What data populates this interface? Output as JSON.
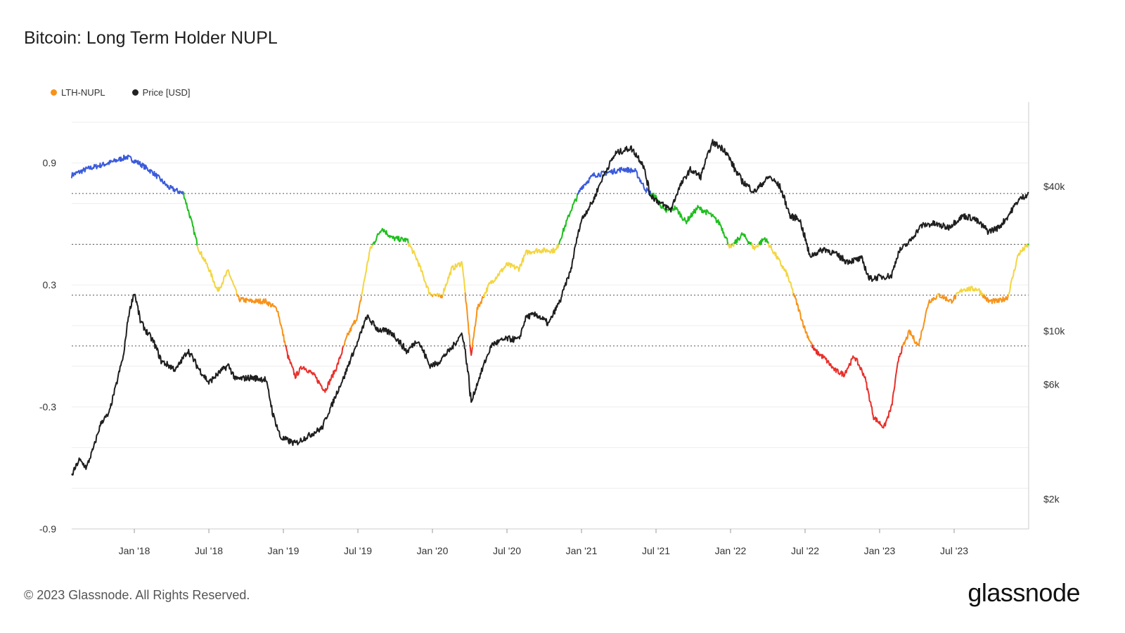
{
  "title": "Bitcoin: Long Term Holder NUPL",
  "legend": [
    {
      "label": "LTH-NUPL",
      "color": "#f7931a"
    },
    {
      "label": "Price [USD]",
      "color": "#222222"
    }
  ],
  "footer": "© 2023 Glassnode. All Rights Reserved.",
  "brand": "glassnode",
  "chart_data": {
    "type": "line",
    "title": "Bitcoin: Long Term Holder NUPL",
    "x_range": [
      2017.5,
      2023.92
    ],
    "x_ticks": [
      {
        "t": 2017.92,
        "label": "Jan '18"
      },
      {
        "t": 2018.42,
        "label": "Jul '18"
      },
      {
        "t": 2018.92,
        "label": "Jan '19"
      },
      {
        "t": 2019.42,
        "label": "Jul '19"
      },
      {
        "t": 2019.92,
        "label": "Jan '20"
      },
      {
        "t": 2020.42,
        "label": "Jul '20"
      },
      {
        "t": 2020.92,
        "label": "Jan '21"
      },
      {
        "t": 2021.42,
        "label": "Jul '21"
      },
      {
        "t": 2021.92,
        "label": "Jan '22"
      },
      {
        "t": 2022.42,
        "label": "Jul '22"
      },
      {
        "t": 2022.92,
        "label": "Jan '23"
      },
      {
        "t": 2023.42,
        "label": "Jul '23"
      }
    ],
    "y_left": {
      "label": "LTH-NUPL",
      "range": [
        -0.9,
        1.2
      ],
      "ticks": [
        0.9,
        0.3,
        -0.3,
        -0.9
      ]
    },
    "y_right": {
      "label": "Price [USD]",
      "scale": "log",
      "ticks": [
        {
          "v": 40000,
          "label": "$40k"
        },
        {
          "v": 10000,
          "label": "$10k"
        },
        {
          "v": 6000,
          "label": "$6k"
        },
        {
          "v": 2000,
          "label": "$2k"
        }
      ]
    },
    "threshold_lines": [
      0.75,
      0.5,
      0.25,
      0.0
    ],
    "zone_colors": {
      "capitulation": "#e8302a",
      "hope_fear": "#f7931a",
      "optimism_anxiety": "#f3d641",
      "belief_denial": "#1fbf1f",
      "euphoria_greed": "#3b5bdb"
    },
    "series": [
      {
        "name": "LTH-NUPL",
        "points": [
          [
            2017.5,
            0.84
          ],
          [
            2017.6,
            0.87
          ],
          [
            2017.75,
            0.9
          ],
          [
            2017.87,
            0.93
          ],
          [
            2017.95,
            0.9
          ],
          [
            2018.05,
            0.85
          ],
          [
            2018.15,
            0.78
          ],
          [
            2018.25,
            0.75
          ],
          [
            2018.3,
            0.62
          ],
          [
            2018.35,
            0.48
          ],
          [
            2018.42,
            0.38
          ],
          [
            2018.48,
            0.27
          ],
          [
            2018.55,
            0.37
          ],
          [
            2018.62,
            0.23
          ],
          [
            2018.7,
            0.22
          ],
          [
            2018.8,
            0.22
          ],
          [
            2018.88,
            0.18
          ],
          [
            2018.95,
            -0.05
          ],
          [
            2019.0,
            -0.15
          ],
          [
            2019.05,
            -0.1
          ],
          [
            2019.12,
            -0.14
          ],
          [
            2019.2,
            -0.22
          ],
          [
            2019.28,
            -0.1
          ],
          [
            2019.35,
            0.05
          ],
          [
            2019.42,
            0.15
          ],
          [
            2019.5,
            0.47
          ],
          [
            2019.58,
            0.58
          ],
          [
            2019.65,
            0.53
          ],
          [
            2019.75,
            0.52
          ],
          [
            2019.82,
            0.42
          ],
          [
            2019.9,
            0.26
          ],
          [
            2019.98,
            0.24
          ],
          [
            2020.05,
            0.38
          ],
          [
            2020.12,
            0.41
          ],
          [
            2020.18,
            -0.05
          ],
          [
            2020.22,
            0.18
          ],
          [
            2020.3,
            0.3
          ],
          [
            2020.42,
            0.4
          ],
          [
            2020.5,
            0.38
          ],
          [
            2020.55,
            0.46
          ],
          [
            2020.62,
            0.47
          ],
          [
            2020.75,
            0.47
          ],
          [
            2020.85,
            0.67
          ],
          [
            2020.92,
            0.78
          ],
          [
            2021.0,
            0.84
          ],
          [
            2021.08,
            0.85
          ],
          [
            2021.2,
            0.87
          ],
          [
            2021.28,
            0.86
          ],
          [
            2021.35,
            0.77
          ],
          [
            2021.42,
            0.73
          ],
          [
            2021.48,
            0.66
          ],
          [
            2021.55,
            0.68
          ],
          [
            2021.62,
            0.61
          ],
          [
            2021.7,
            0.68
          ],
          [
            2021.78,
            0.65
          ],
          [
            2021.85,
            0.6
          ],
          [
            2021.92,
            0.48
          ],
          [
            2022.0,
            0.55
          ],
          [
            2022.08,
            0.48
          ],
          [
            2022.15,
            0.53
          ],
          [
            2022.22,
            0.45
          ],
          [
            2022.3,
            0.35
          ],
          [
            2022.36,
            0.22
          ],
          [
            2022.42,
            0.08
          ],
          [
            2022.48,
            -0.02
          ],
          [
            2022.55,
            -0.06
          ],
          [
            2022.62,
            -0.12
          ],
          [
            2022.68,
            -0.14
          ],
          [
            2022.75,
            -0.05
          ],
          [
            2022.82,
            -0.15
          ],
          [
            2022.88,
            -0.35
          ],
          [
            2022.95,
            -0.4
          ],
          [
            2023.0,
            -0.3
          ],
          [
            2023.05,
            -0.05
          ],
          [
            2023.12,
            0.07
          ],
          [
            2023.18,
            0.0
          ],
          [
            2023.25,
            0.22
          ],
          [
            2023.32,
            0.25
          ],
          [
            2023.4,
            0.22
          ],
          [
            2023.48,
            0.28
          ],
          [
            2023.58,
            0.28
          ],
          [
            2023.65,
            0.22
          ],
          [
            2023.72,
            0.22
          ],
          [
            2023.78,
            0.24
          ],
          [
            2023.85,
            0.45
          ],
          [
            2023.92,
            0.5
          ]
        ]
      },
      {
        "name": "Price [USD]",
        "points": [
          [
            2017.5,
            2500
          ],
          [
            2017.55,
            2900
          ],
          [
            2017.6,
            2700
          ],
          [
            2017.65,
            3300
          ],
          [
            2017.7,
            4200
          ],
          [
            2017.75,
            4500
          ],
          [
            2017.8,
            6000
          ],
          [
            2017.85,
            8000
          ],
          [
            2017.88,
            11500
          ],
          [
            2017.92,
            14500
          ],
          [
            2017.96,
            11000
          ],
          [
            2018.0,
            10000
          ],
          [
            2018.05,
            9000
          ],
          [
            2018.1,
            7500
          ],
          [
            2018.2,
            6900
          ],
          [
            2018.28,
            8300
          ],
          [
            2018.35,
            7000
          ],
          [
            2018.42,
            6100
          ],
          [
            2018.5,
            6800
          ],
          [
            2018.55,
            7200
          ],
          [
            2018.6,
            6300
          ],
          [
            2018.7,
            6400
          ],
          [
            2018.8,
            6300
          ],
          [
            2018.85,
            4500
          ],
          [
            2018.9,
            3600
          ],
          [
            2018.95,
            3500
          ],
          [
            2019.0,
            3400
          ],
          [
            2019.1,
            3700
          ],
          [
            2019.18,
            3950
          ],
          [
            2019.25,
            5000
          ],
          [
            2019.33,
            6500
          ],
          [
            2019.42,
            9000
          ],
          [
            2019.48,
            11500
          ],
          [
            2019.55,
            10200
          ],
          [
            2019.65,
            9800
          ],
          [
            2019.75,
            8200
          ],
          [
            2019.82,
            9200
          ],
          [
            2019.9,
            7200
          ],
          [
            2019.95,
            7300
          ],
          [
            2020.05,
            8500
          ],
          [
            2020.12,
            9800
          ],
          [
            2020.18,
            5000
          ],
          [
            2020.25,
            6800
          ],
          [
            2020.32,
            8800
          ],
          [
            2020.42,
            9300
          ],
          [
            2020.5,
            9200
          ],
          [
            2020.55,
            11500
          ],
          [
            2020.62,
            11700
          ],
          [
            2020.7,
            10700
          ],
          [
            2020.78,
            13500
          ],
          [
            2020.85,
            18000
          ],
          [
            2020.92,
            29000
          ],
          [
            2021.0,
            35000
          ],
          [
            2021.08,
            46000
          ],
          [
            2021.15,
            55000
          ],
          [
            2021.25,
            58000
          ],
          [
            2021.33,
            50000
          ],
          [
            2021.38,
            37000
          ],
          [
            2021.45,
            34000
          ],
          [
            2021.52,
            32000
          ],
          [
            2021.58,
            40000
          ],
          [
            2021.65,
            47000
          ],
          [
            2021.72,
            44000
          ],
          [
            2021.8,
            61000
          ],
          [
            2021.88,
            57000
          ],
          [
            2021.95,
            47000
          ],
          [
            2022.0,
            42000
          ],
          [
            2022.08,
            38000
          ],
          [
            2022.18,
            44000
          ],
          [
            2022.25,
            40000
          ],
          [
            2022.32,
            30000
          ],
          [
            2022.38,
            29500
          ],
          [
            2022.45,
            20500
          ],
          [
            2022.55,
            22000
          ],
          [
            2022.62,
            21000
          ],
          [
            2022.7,
            19500
          ],
          [
            2022.8,
            20000
          ],
          [
            2022.85,
            16500
          ],
          [
            2022.92,
            16800
          ],
          [
            2023.0,
            17000
          ],
          [
            2023.05,
            21500
          ],
          [
            2023.12,
            23500
          ],
          [
            2023.2,
            27500
          ],
          [
            2023.28,
            28000
          ],
          [
            2023.38,
            27000
          ],
          [
            2023.48,
            30200
          ],
          [
            2023.55,
            29500
          ],
          [
            2023.65,
            26000
          ],
          [
            2023.72,
            27000
          ],
          [
            2023.78,
            30000
          ],
          [
            2023.85,
            35000
          ],
          [
            2023.92,
            37500
          ]
        ]
      }
    ]
  }
}
